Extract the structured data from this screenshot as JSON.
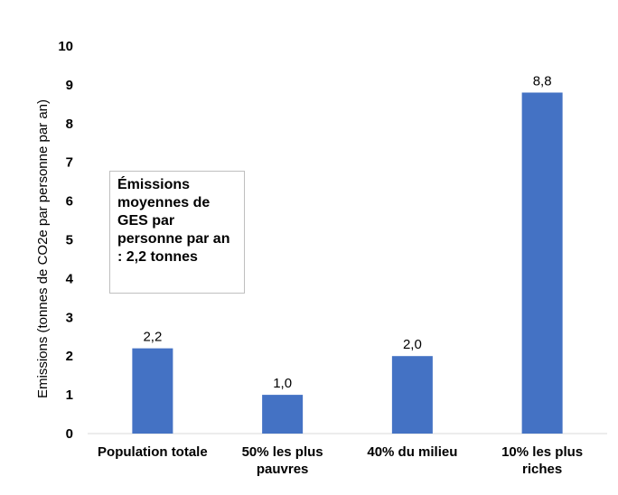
{
  "chart_data": {
    "type": "bar",
    "categories": [
      "Population totale",
      "50% les plus pauvres",
      "40% du milieu",
      "10% les plus riches"
    ],
    "category_lines": [
      [
        "Population totale"
      ],
      [
        "50% les plus",
        "pauvres"
      ],
      [
        "40% du milieu"
      ],
      [
        "10% les plus",
        "riches"
      ]
    ],
    "values": [
      2.2,
      1.0,
      2.0,
      8.8
    ],
    "data_labels": [
      "2,2",
      "1,0",
      "2,0",
      "8,8"
    ],
    "ylabel": "Emissions (tonnes de CO2e par personne par an)",
    "xlabel": "",
    "ylim": [
      0,
      10
    ],
    "yticks": [
      0,
      1,
      2,
      3,
      4,
      5,
      6,
      7,
      8,
      9,
      10
    ],
    "grid": false,
    "bar_color": "#4472c4",
    "annotation": "Émissions moyennes de GES par personne par an : 2,2 tonnes"
  }
}
